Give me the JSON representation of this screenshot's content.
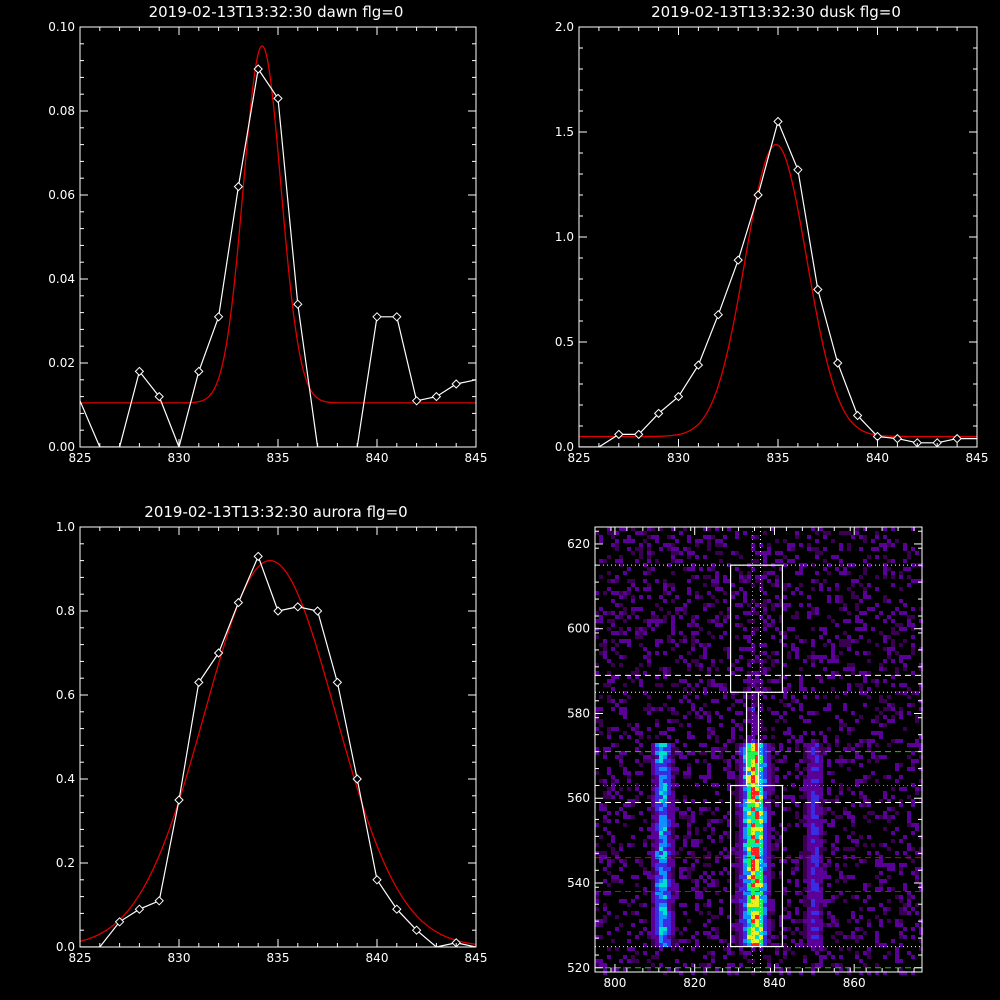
{
  "chart_data": [
    {
      "type": "line",
      "title": "2019-02-13T13:32:30 dawn flg=0",
      "xlim": [
        825,
        845
      ],
      "ylim": [
        0,
        0.1
      ],
      "xticks": [
        825,
        830,
        835,
        840,
        845
      ],
      "yticks": [
        0.0,
        0.02,
        0.04,
        0.06,
        0.08,
        0.1
      ],
      "ytick_labels": [
        "0.00",
        "0.02",
        "0.04",
        "0.06",
        "0.08",
        "0.10"
      ],
      "series": [
        {
          "role": "observed",
          "color": "#ffffff",
          "marker": "diamond",
          "x": [
            825,
            826,
            827,
            828,
            829,
            830,
            831,
            832,
            833,
            834,
            835,
            836,
            837,
            838,
            839,
            840,
            841,
            842,
            843,
            844,
            845
          ],
          "y": [
            0.011,
            0.0,
            0.0,
            0.018,
            0.012,
            0.0,
            0.018,
            0.031,
            0.062,
            0.09,
            0.083,
            0.034,
            0.0,
            0.0,
            0.0,
            0.031,
            0.031,
            0.011,
            0.012,
            0.015,
            0.016
          ]
        },
        {
          "role": "gaussian-fit",
          "color": "#dd0000",
          "baseline": 0.0105,
          "amplitude": 0.085,
          "center": 834.2,
          "sigma": 0.95
        }
      ]
    },
    {
      "type": "line",
      "title": "2019-02-13T13:32:30 dusk flg=0",
      "xlim": [
        825,
        845
      ],
      "ylim": [
        0,
        2.0
      ],
      "xticks": [
        825,
        830,
        835,
        840,
        845
      ],
      "yticks": [
        0.0,
        0.5,
        1.0,
        1.5,
        2.0
      ],
      "ytick_labels": [
        "0.0",
        "0.5",
        "1.0",
        "1.5",
        "2.0"
      ],
      "series": [
        {
          "role": "observed",
          "color": "#ffffff",
          "marker": "diamond",
          "x": [
            825,
            826,
            827,
            828,
            829,
            830,
            831,
            832,
            833,
            834,
            835,
            836,
            837,
            838,
            839,
            840,
            841,
            842,
            843,
            844,
            845
          ],
          "y": [
            0.0,
            0.0,
            0.06,
            0.06,
            0.16,
            0.24,
            0.39,
            0.63,
            0.89,
            1.2,
            1.55,
            1.32,
            0.75,
            0.4,
            0.15,
            0.05,
            0.04,
            0.02,
            0.02,
            0.04,
            0.04
          ]
        },
        {
          "role": "gaussian-fit",
          "color": "#dd0000",
          "baseline": 0.05,
          "amplitude": 1.39,
          "center": 834.9,
          "sigma": 1.55
        }
      ]
    },
    {
      "type": "line",
      "title": "2019-02-13T13:32:30 aurora flg=0",
      "xlim": [
        825,
        845
      ],
      "ylim": [
        0,
        1.0
      ],
      "xticks": [
        825,
        830,
        835,
        840,
        845
      ],
      "yticks": [
        0.0,
        0.2,
        0.4,
        0.6,
        0.8,
        1.0
      ],
      "ytick_labels": [
        "0.0",
        "0.2",
        "0.4",
        "0.6",
        "0.8",
        "1.0"
      ],
      "series": [
        {
          "role": "observed",
          "color": "#ffffff",
          "marker": "diamond",
          "x": [
            825,
            826,
            827,
            828,
            829,
            830,
            831,
            832,
            833,
            834,
            835,
            836,
            837,
            838,
            839,
            840,
            841,
            842,
            843,
            844,
            845
          ],
          "y": [
            0.0,
            0.0,
            0.06,
            0.09,
            0.11,
            0.35,
            0.63,
            0.7,
            0.82,
            0.93,
            0.8,
            0.81,
            0.8,
            0.63,
            0.4,
            0.16,
            0.09,
            0.04,
            0.0,
            0.01,
            0.0
          ]
        },
        {
          "role": "gaussian-fit",
          "color": "#dd0000",
          "baseline": 0.0,
          "amplitude": 0.92,
          "center": 834.6,
          "sigma": 3.3
        }
      ]
    },
    {
      "type": "heatmap",
      "title": "",
      "xlim": [
        795,
        877
      ],
      "ylim": [
        519,
        624
      ],
      "xticks": [
        800,
        820,
        840,
        860
      ],
      "yticks": [
        520,
        540,
        560,
        580,
        600,
        620
      ],
      "colormap": [
        "#000000",
        "#3a0050",
        "#5a0098",
        "#3a2ce0",
        "#1090ff",
        "#00e0d0",
        "#20f050",
        "#e8f020",
        "#ff2020"
      ],
      "emission_columns": [
        {
          "center": 835,
          "width": 2.0,
          "strength": 1.0
        },
        {
          "center": 812,
          "width": 1.6,
          "strength": 0.55
        },
        {
          "center": 850,
          "width": 1.5,
          "strength": 0.3
        }
      ],
      "emission_rows": [
        525,
        573
      ],
      "boxes": [
        {
          "x": [
            829,
            842
          ],
          "y": [
            525,
            563
          ],
          "color": "#ffffff"
        },
        {
          "x": [
            829,
            842
          ],
          "y": [
            585,
            615
          ],
          "color": "#ffffff"
        }
      ],
      "horizontal_lines": [
        {
          "y": 615,
          "color": "#ffffff",
          "style": "dotted"
        },
        {
          "y": 589,
          "color": "#ffffff",
          "style": "dashed"
        },
        {
          "y": 585,
          "color": "#ffffff",
          "style": "dotted"
        },
        {
          "y": 571,
          "color": "#00dd00",
          "style": "dashed"
        },
        {
          "y": 563,
          "color": "#00dd00",
          "style": "dotted"
        },
        {
          "y": 559,
          "color": "#ffffff",
          "style": "dashed"
        },
        {
          "y": 546,
          "color": "#dd0000",
          "style": "dashed"
        },
        {
          "y": 538,
          "color": "#dd0000",
          "style": "dashed"
        },
        {
          "y": 525,
          "color": "#ffffff",
          "style": "dotted"
        },
        {
          "y": 520,
          "color": "#00dd00",
          "style": "dashed"
        }
      ],
      "vertical_lines": [
        {
          "x": 834.5,
          "color": "#ff60ff",
          "style": "dotted"
        },
        {
          "x": 836.5,
          "color": "#ffffff",
          "style": "dotted"
        }
      ]
    }
  ]
}
